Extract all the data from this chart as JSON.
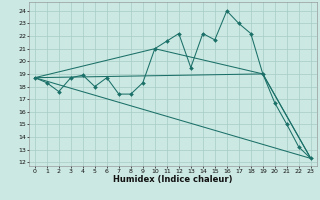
{
  "xlabel": "Humidex (Indice chaleur)",
  "bg_color": "#cce8e2",
  "grid_color": "#a8ccc6",
  "line_color": "#1a7068",
  "ylim": [
    11.7,
    24.7
  ],
  "xlim": [
    -0.5,
    23.5
  ],
  "yticks": [
    12,
    13,
    14,
    15,
    16,
    17,
    18,
    19,
    20,
    21,
    22,
    23,
    24
  ],
  "xticks": [
    0,
    1,
    2,
    3,
    4,
    5,
    6,
    7,
    8,
    9,
    10,
    11,
    12,
    13,
    14,
    15,
    16,
    17,
    18,
    19,
    20,
    21,
    22,
    23
  ],
  "line1_x": [
    0,
    1,
    2,
    3,
    4,
    5,
    6,
    7,
    8,
    9,
    10,
    11,
    12,
    13,
    14,
    15,
    16,
    17,
    18,
    19,
    20,
    21,
    22,
    23
  ],
  "line1_y": [
    18.7,
    18.3,
    17.6,
    18.7,
    18.9,
    18.0,
    18.7,
    17.4,
    17.4,
    18.3,
    21.0,
    21.6,
    22.2,
    19.5,
    22.2,
    21.7,
    24.0,
    23.0,
    22.2,
    19.0,
    16.7,
    15.0,
    13.2,
    12.3
  ],
  "line2_x": [
    0,
    23
  ],
  "line2_y": [
    18.7,
    12.3
  ],
  "line3_x": [
    0,
    19,
    23
  ],
  "line3_y": [
    18.7,
    19.0,
    12.3
  ],
  "line4_x": [
    0,
    10,
    19,
    23
  ],
  "line4_y": [
    18.7,
    21.0,
    19.0,
    12.3
  ]
}
